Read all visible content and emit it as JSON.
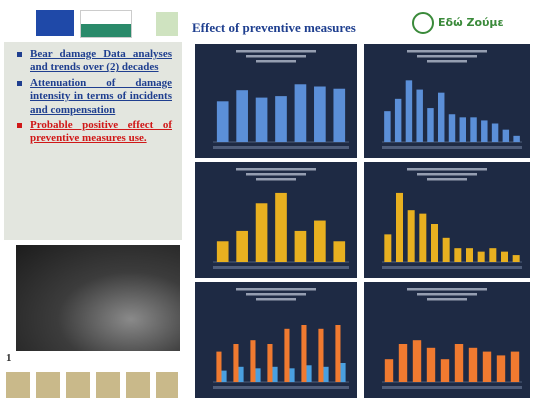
{
  "header": {
    "title": "Effect of preventive measures",
    "brand": "Εδώ Ζούμε"
  },
  "bullets": [
    {
      "text": "Bear damage Data analyses and trends over (2) decades",
      "color": "#1f3f8f"
    },
    {
      "text": "Attenuation of damage intensity in terms of incidents and compensation",
      "color": "#1f3f8f"
    },
    {
      "text": "Probable positive effect of preventive measures use.",
      "color": "#d01818"
    }
  ],
  "page_number": "1",
  "charts": [
    {
      "type": "bar",
      "ylim": [
        0,
        100
      ],
      "series": [
        {
          "color": "#5b8fd8",
          "values": [
            55,
            70,
            60,
            62,
            78,
            75,
            72
          ]
        }
      ]
    },
    {
      "type": "bar",
      "ylim": [
        0,
        120
      ],
      "series": [
        {
          "color": "#5b8fd8",
          "values": [
            50,
            70,
            100,
            85,
            55,
            80,
            45,
            40,
            40,
            35,
            30,
            20,
            10
          ]
        }
      ]
    },
    {
      "type": "bar",
      "ylim": [
        0,
        110
      ],
      "series": [
        {
          "color": "#e8b020",
          "values": [
            30,
            45,
            85,
            100,
            45,
            60,
            30
          ]
        }
      ]
    },
    {
      "type": "bar",
      "ylim": [
        0,
        110
      ],
      "series": [
        {
          "color": "#e8b020",
          "values": [
            40,
            100,
            75,
            70,
            55,
            35,
            20,
            20,
            15,
            20,
            15,
            10
          ]
        }
      ]
    },
    {
      "type": "bar",
      "ylim": [
        0,
        100
      ],
      "series": [
        {
          "color": "#f07a30",
          "values": [
            40,
            50,
            55,
            50,
            70,
            75,
            70,
            75
          ]
        },
        {
          "color": "#4aa0e0",
          "values": [
            15,
            20,
            18,
            20,
            18,
            22,
            20,
            25
          ]
        }
      ]
    },
    {
      "type": "bar",
      "ylim": [
        0,
        100
      ],
      "series": [
        {
          "color": "#f07a30",
          "values": [
            30,
            50,
            55,
            45,
            30,
            50,
            45,
            40,
            35,
            40
          ]
        }
      ]
    }
  ]
}
